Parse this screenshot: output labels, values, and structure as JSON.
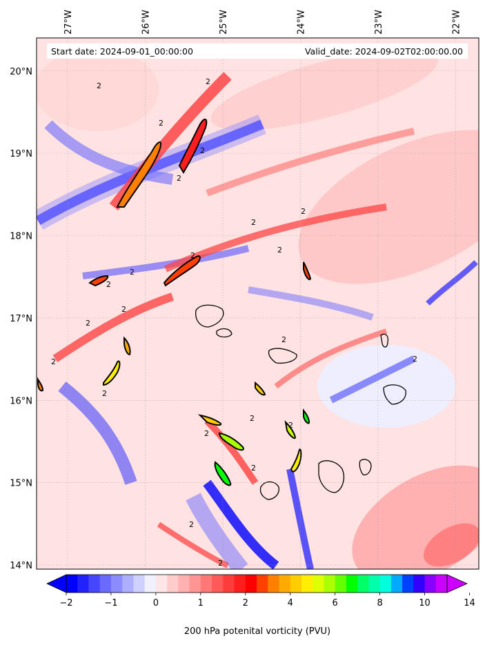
{
  "chart_data": {
    "type": "heatmap",
    "title": "",
    "header": {
      "start_label": "Start date: 2024-09-01_00:00:00",
      "valid_label": "Valid_date: 2024-09-02T02:00:00.00"
    },
    "x_axis": {
      "ticks": [
        "27°W",
        "26°W",
        "25°W",
        "24°W",
        "23°W",
        "22°W"
      ],
      "tick_values": [
        -27,
        -26,
        -25,
        -24,
        -23,
        -22
      ],
      "range": [
        -27.4,
        -21.7
      ]
    },
    "y_axis": {
      "ticks": [
        "20°N",
        "19°N",
        "18°N",
        "17°N",
        "16°N",
        "15°N",
        "14°N"
      ],
      "tick_values": [
        20,
        19,
        18,
        17,
        16,
        15,
        14
      ],
      "range": [
        13.95,
        20.4
      ]
    },
    "colorbar": {
      "label": "200 hPa potenital vorticity (PVU)",
      "extend": "both",
      "tick_labels": [
        "−2",
        "−1",
        "0",
        "1",
        "2",
        "4",
        "6",
        "8",
        "10",
        "14"
      ],
      "colors": [
        "#0000ff",
        "#2222ff",
        "#4646ff",
        "#6a6aff",
        "#8c8cff",
        "#aeaeff",
        "#d0d0ff",
        "#f0f0ff",
        "#ffe6e6",
        "#ffcccc",
        "#ffb0b0",
        "#ff9494",
        "#ff7878",
        "#ff5a5a",
        "#ff3c3c",
        "#ff1e1e",
        "#ff0000",
        "#ff4000",
        "#ff8000",
        "#ffaa00",
        "#ffcc00",
        "#ffee00",
        "#ddff00",
        "#aaff00",
        "#66ff00",
        "#00ff00",
        "#00ff66",
        "#00ffaa",
        "#00ffdd",
        "#00aaff",
        "#0040ff",
        "#3300ff",
        "#8800ff",
        "#cc00ff"
      ],
      "under_color": "#0000ff",
      "over_color": "#cc00ff"
    },
    "contour_level_label": "2",
    "grid": true
  }
}
